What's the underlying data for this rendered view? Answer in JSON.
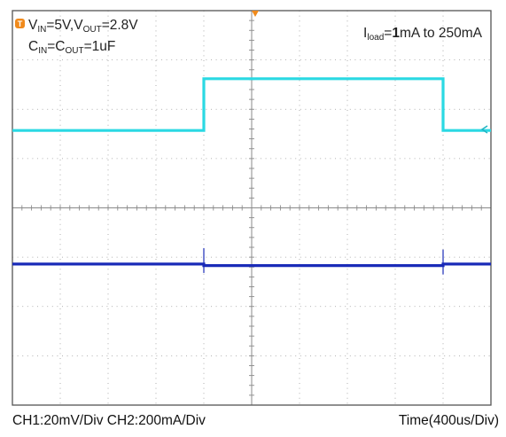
{
  "chart_data": {
    "type": "line",
    "title": "",
    "xlabel": "",
    "ylabel": "",
    "grid": true,
    "x_divisions": 10,
    "y_divisions": 8,
    "x_unit": "us",
    "x_range": [
      0,
      4000
    ],
    "annotations": {
      "vin_label": "V",
      "vin_sub": "IN",
      "vin_value": "=5V,V",
      "vout_sub": "OUT",
      "vout_value": "=2.8V",
      "cin_label": "C",
      "cin_sub": "IN",
      "cin_eq": "=C",
      "cout_sub": "OUT",
      "cap_value": "=1uF",
      "iload_label": "I",
      "iload_sub": "load",
      "iload_eq": "=",
      "iload_low": "1",
      "iload_rest": "mA to 250mA"
    },
    "series": [
      {
        "color": "#2ad9e3",
        "unit": "div",
        "x": [
          0,
          1600,
          1600,
          3600,
          3600,
          4000
        ],
        "values": [
          5.57,
          5.57,
          6.62,
          6.62,
          5.57,
          5.57
        ],
        "spikes_x": []
      },
      {
        "color": "#1a2bb8",
        "unit": "div",
        "x": [
          0,
          1600,
          1600,
          3600,
          3600,
          4000
        ],
        "values": [
          2.86,
          2.86,
          2.83,
          2.83,
          2.86,
          2.86
        ],
        "spikes_x": [
          1600,
          3600
        ]
      }
    ]
  },
  "footer": {
    "channels": "CH1:20mV/Div  CH2:200mA/Div",
    "time": "Time(400us/Div)"
  }
}
